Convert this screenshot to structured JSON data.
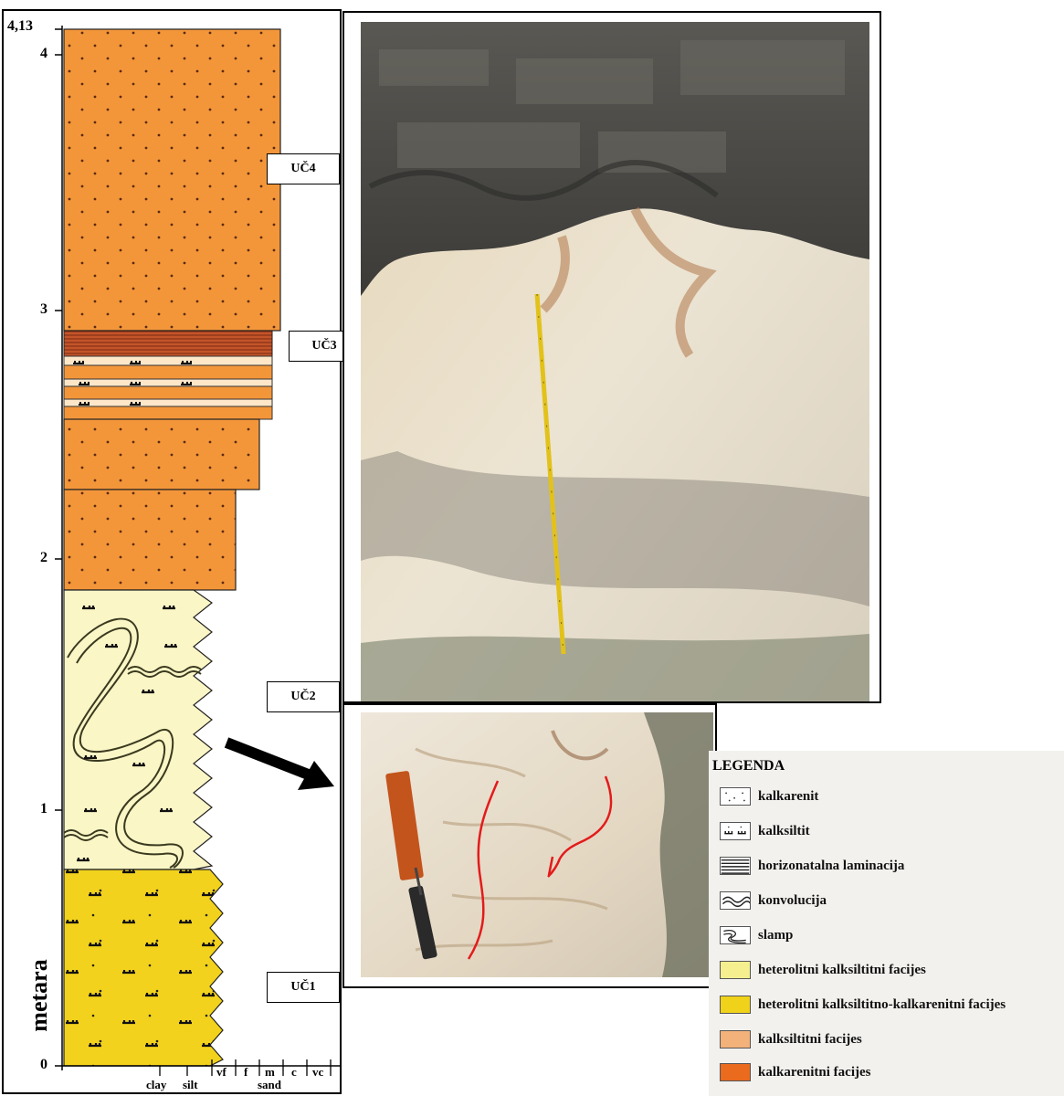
{
  "log": {
    "top_value": "4,13",
    "y_ticks": [
      "4",
      "3",
      "2",
      "1",
      "0"
    ],
    "unit_label": "metara",
    "grain_labels": [
      "vf",
      "f",
      "m",
      "c",
      "vc"
    ],
    "group_labels": [
      "clay",
      "silt",
      "sand"
    ]
  },
  "units": [
    "UČ4",
    "UČ3",
    "UČ2",
    "UČ1"
  ],
  "legend": {
    "title": "LEGENDA",
    "items": [
      {
        "label": "kalkarenit",
        "swatch": "kalkarenit-pattern"
      },
      {
        "label": "kalksiltit",
        "swatch": "kalksiltit-pattern"
      },
      {
        "label": "horizonatalna laminacija",
        "swatch": "lamination-pattern"
      },
      {
        "label": "konvolucija",
        "swatch": "convolution-pattern"
      },
      {
        "label": "slamp",
        "swatch": "slump-pattern"
      },
      {
        "label": "heterolitni kalksiltitni facijes",
        "swatch": "#f6ef8f"
      },
      {
        "label": "heterolitni kalksiltitno-kalkarenitni facijes",
        "swatch": "#f0d21a"
      },
      {
        "label": "kalksiltitni facijes",
        "swatch": "#f2b27a"
      },
      {
        "label": "kalkarenitni facijes",
        "swatch": "#ea6a1e"
      }
    ]
  },
  "colors": {
    "calcarenite": "#f3963a",
    "calcarenite_light": "#f6b169",
    "heterolithic_calcisiltite": "#fbf6c6",
    "heterolithic_mixed": "#f2d21c",
    "lamination": "#c4542a",
    "photo_rock_dark": "#4b4b48",
    "photo_rock_light": "#e9dfcc"
  }
}
